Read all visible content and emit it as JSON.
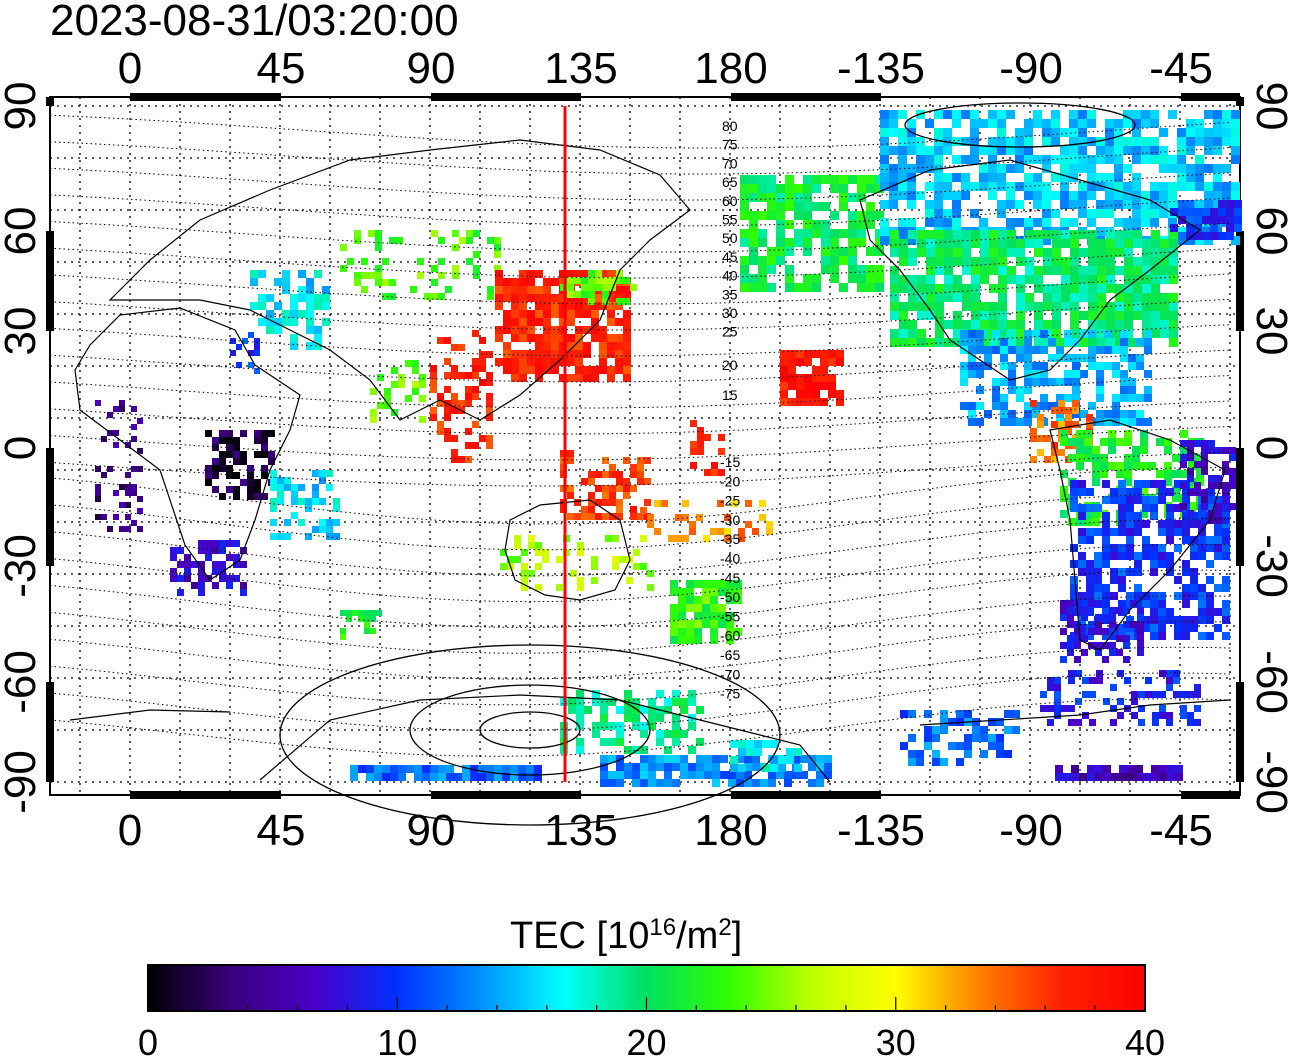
{
  "title": "2023-08-31/03:20:00",
  "map": {
    "top_lon_labels": [
      "0",
      "45",
      "90",
      "135",
      "180",
      "-135",
      "-90",
      "-45"
    ],
    "bottom_lon_labels": [
      "0",
      "45",
      "90",
      "135",
      "180",
      "-135",
      "-90",
      "-45"
    ],
    "left_lat_labels": [
      "90",
      "60",
      "30",
      "0",
      "-30",
      "-60",
      "-90"
    ],
    "right_lat_labels": [
      "90",
      "60",
      "30",
      "0",
      "-30",
      "-60",
      "-90"
    ],
    "meridian_marker_lon": 130,
    "meridian_marker_color": "#ff0000",
    "contour_labels_north": [
      "80",
      "75",
      "70",
      "65",
      "60",
      "55",
      "50",
      "45",
      "40",
      "35",
      "30",
      "25",
      "20",
      "15"
    ],
    "contour_labels_south": [
      "-15",
      "-20",
      "-25",
      "-30",
      "-35",
      "-40",
      "-45",
      "-50",
      "-55",
      "-60",
      "-65",
      "-70",
      "-75"
    ]
  },
  "colorbar": {
    "label_main": "TEC  [10",
    "label_sup1": "16",
    "label_mid": "/m",
    "label_sup2": "2",
    "label_end": "]",
    "min": 0,
    "max": 40,
    "ticks": [
      "0",
      "10",
      "20",
      "30",
      "40"
    ],
    "colors": [
      "#000000",
      "#3a007a",
      "#4a00c8",
      "#0030ff",
      "#0090ff",
      "#00ffff",
      "#00e060",
      "#30ff00",
      "#c0ff00",
      "#ffff00",
      "#ff8000",
      "#ff2000",
      "#ff0000"
    ]
  }
}
